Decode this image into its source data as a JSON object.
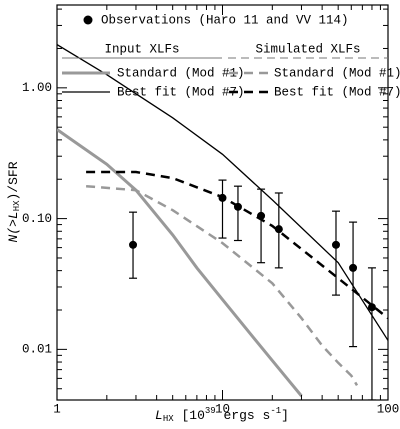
{
  "chart_data": {
    "type": "line",
    "xlabel": [
      "L",
      "HX",
      " [10",
      "39",
      " ergs s",
      "-1",
      "]"
    ],
    "ylabel": [
      "N(>L",
      "HX",
      ")/SFR"
    ],
    "xscale": "log",
    "yscale": "log",
    "xlim": [
      1,
      100
    ],
    "ylim": [
      0.0041,
      4.3
    ],
    "xticks": [
      1,
      10,
      100
    ],
    "yticks": [
      {
        "value": 0.01,
        "label": "0.01"
      },
      {
        "value": 0.1,
        "label": "0.10"
      },
      {
        "value": 1,
        "label": "1.00"
      }
    ],
    "xminorticks": [
      2,
      3,
      4,
      5,
      6,
      7,
      8,
      9,
      20,
      30,
      40,
      50,
      60,
      70,
      80,
      90
    ],
    "yminorticks": [
      0.005,
      0.006,
      0.007,
      0.008,
      0.009,
      0.02,
      0.03,
      0.04,
      0.05,
      0.06,
      0.07,
      0.08,
      0.09,
      0.2,
      0.3,
      0.4,
      0.5,
      0.6,
      0.7,
      0.8,
      0.9,
      2,
      3,
      4
    ],
    "legend_groups": [
      "Input XLFs",
      "Simulated XLFs"
    ],
    "series": [
      {
        "name": "Observations (Haro 11 and VV 114)",
        "kind": "points",
        "color": "#000000",
        "x": [
          2.88,
          10,
          12.4,
          17.1,
          21.9,
          48.5,
          61.5,
          80
        ],
        "values": [
          0.063,
          0.144,
          0.123,
          0.105,
          0.083,
          0.063,
          0.042,
          0.021
        ],
        "y_low": [
          0.035,
          0.071,
          0.068,
          0.046,
          0.042,
          0.026,
          0.0105,
          0.0041
        ],
        "y_high": [
          0.112,
          0.197,
          0.177,
          0.168,
          0.157,
          0.114,
          0.094,
          0.042
        ]
      },
      {
        "name": "Standard (Mod #1)",
        "group": 0,
        "style": "solid",
        "color": "#999999",
        "linewidth": 3,
        "x": [
          1,
          2,
          3,
          5,
          7,
          10,
          15,
          20,
          30
        ],
        "values": [
          0.48,
          0.26,
          0.165,
          0.075,
          0.042,
          0.024,
          0.0128,
          0.0082,
          0.0044
        ]
      },
      {
        "name": "Best fit (Mod #7)",
        "group": 0,
        "style": "solid",
        "color": "#000000",
        "linewidth": 1.3,
        "x": [
          1,
          2,
          5,
          10,
          20,
          50,
          100
        ],
        "values": [
          2.14,
          1.26,
          0.59,
          0.31,
          0.139,
          0.046,
          0.0117
        ]
      },
      {
        "name": "Standard (Mod #1)",
        "group": 1,
        "style": "dashed",
        "color": "#999999",
        "linewidth": 2.5,
        "x": [
          1.5,
          3,
          5,
          10,
          20,
          30,
          40,
          50,
          60,
          65
        ],
        "values": [
          0.177,
          0.165,
          0.116,
          0.065,
          0.032,
          0.0173,
          0.0107,
          0.0079,
          0.0063,
          0.0053
        ]
      },
      {
        "name": "Best fit (Mod #7)",
        "group": 1,
        "style": "dashed",
        "color": "#000000",
        "linewidth": 2.5,
        "x": [
          1.5,
          3,
          5,
          10,
          20,
          50,
          100
        ],
        "values": [
          0.227,
          0.227,
          0.204,
          0.146,
          0.088,
          0.035,
          0.0173
        ]
      }
    ]
  }
}
